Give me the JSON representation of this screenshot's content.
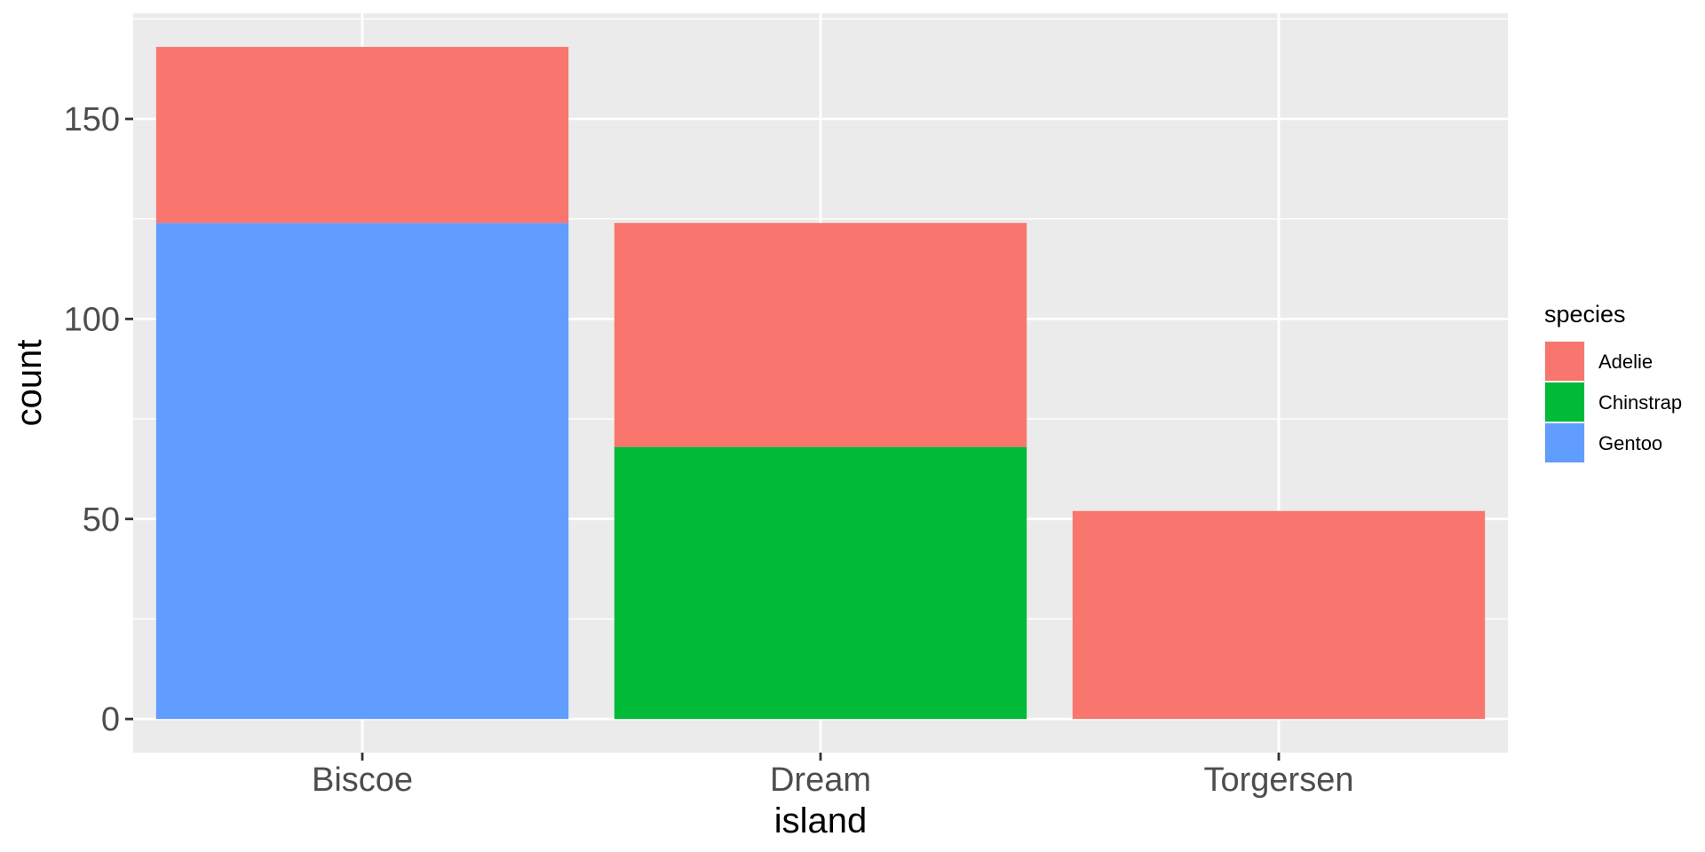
{
  "chart_data": {
    "type": "bar",
    "stacked": true,
    "categories": [
      "Biscoe",
      "Dream",
      "Torgersen"
    ],
    "series": [
      {
        "name": "Adelie",
        "color": "#F8766D",
        "values": [
          44,
          56,
          52
        ]
      },
      {
        "name": "Chinstrap",
        "color": "#00BA38",
        "values": [
          0,
          68,
          0
        ]
      },
      {
        "name": "Gentoo",
        "color": "#619CFF",
        "values": [
          124,
          0,
          0
        ]
      }
    ],
    "stack_order": [
      "Gentoo",
      "Chinstrap",
      "Adelie"
    ],
    "xlabel": "island",
    "ylabel": "count",
    "ylim": [
      -8.4,
      176.4
    ],
    "yticks": [
      0,
      50,
      100,
      150
    ],
    "y_minor_ticks": [
      25,
      75,
      125,
      175
    ],
    "legend": {
      "title": "species",
      "position": "right",
      "items": [
        "Adelie",
        "Chinstrap",
        "Gentoo"
      ]
    },
    "grid": true,
    "panel_background": "#EBEBEB",
    "grid_color": "#FFFFFF"
  }
}
